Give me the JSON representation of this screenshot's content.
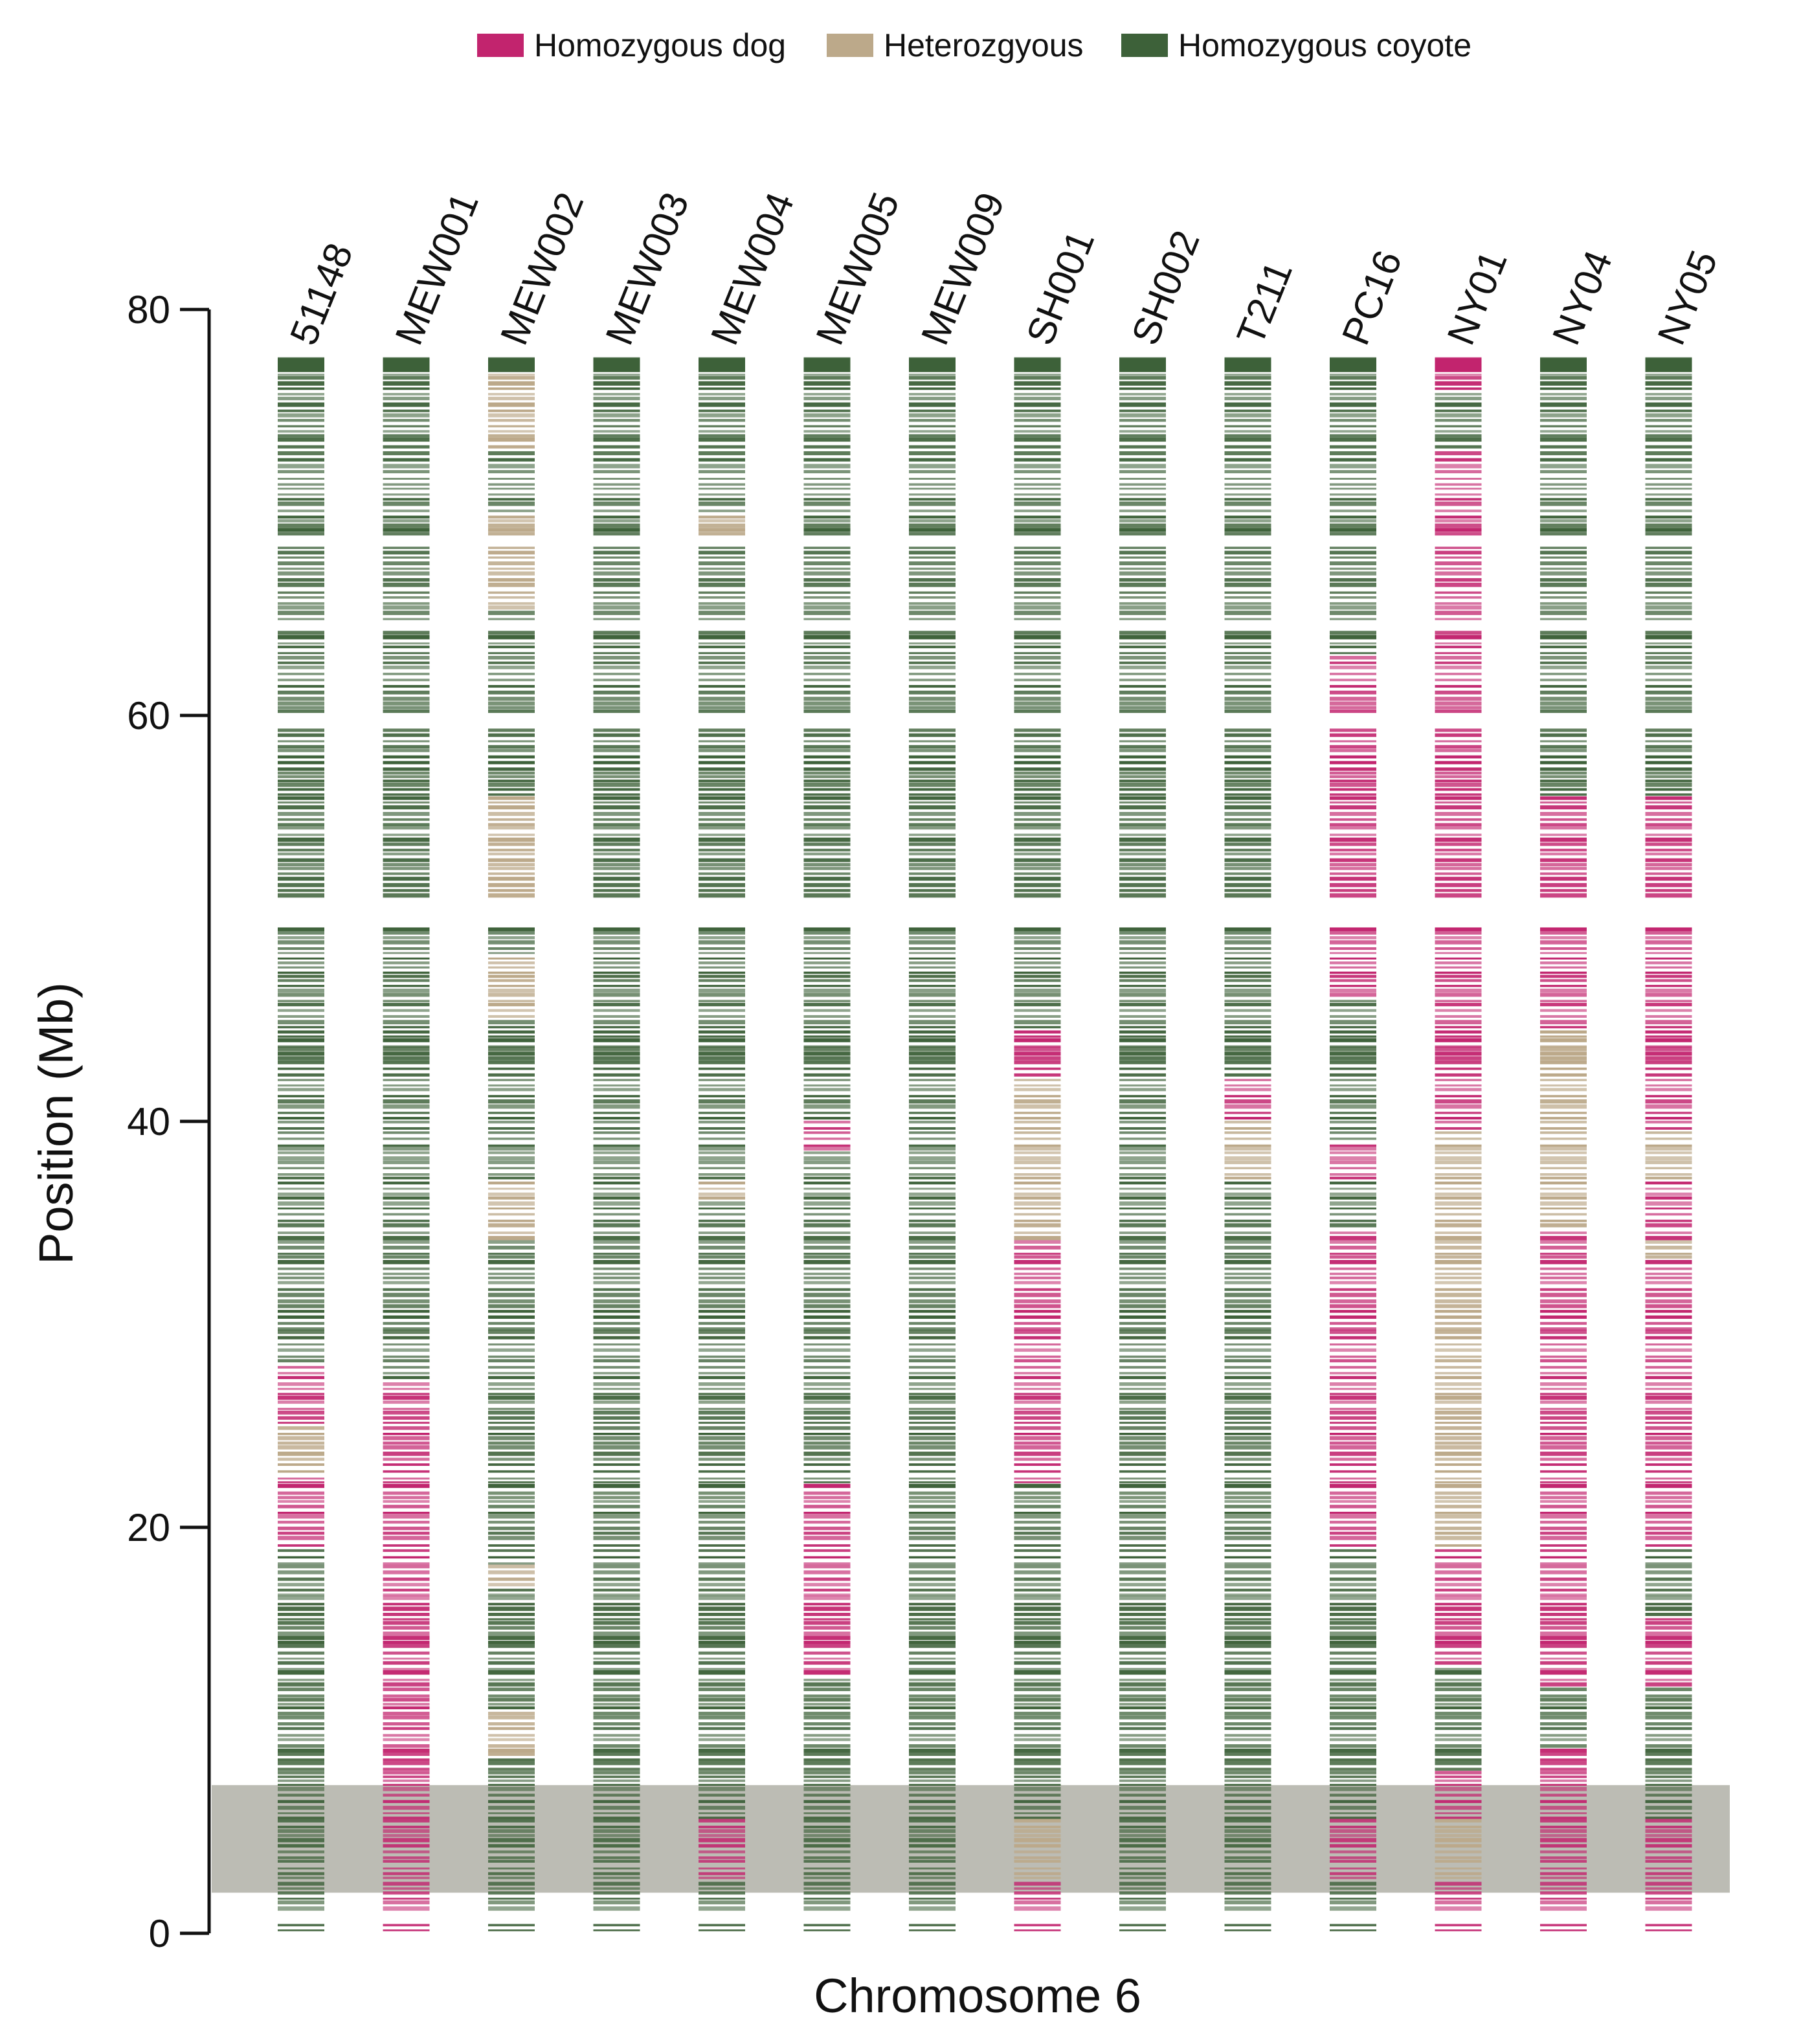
{
  "legend": {
    "items": [
      {
        "label": "Homozygous dog",
        "color": "#C2246E"
      },
      {
        "label": "Heterozgyous",
        "color": "#BCA98A"
      },
      {
        "label": "Homozygous coyote",
        "color": "#3D6139"
      }
    ]
  },
  "highlight": {
    "from": 2.0,
    "to": 7.3,
    "color": "#B8B8B0"
  },
  "chart_data": {
    "type": "heatmap",
    "title": "",
    "xlabel": "Chromosome 6",
    "ylabel": "Position (Mb)",
    "ylim": [
      0,
      80
    ],
    "yticks": [
      0,
      20,
      40,
      60,
      80
    ],
    "ytick_labels": [
      "0",
      "20",
      "40",
      "60",
      "80"
    ],
    "tracks": [
      {
        "sample": "51148",
        "segments": [
          [
            0,
            19,
            "coyote"
          ],
          [
            19,
            28,
            "dog"
          ],
          [
            28,
            80,
            "coyote"
          ]
        ],
        "het_spots": [
          [
            22.5,
            25
          ]
        ]
      },
      {
        "sample": "MEW001",
        "segments": [
          [
            0,
            27,
            "dog"
          ],
          [
            27,
            80,
            "coyote"
          ]
        ],
        "het_spots": []
      },
      {
        "sample": "MEW002",
        "segments": [
          [
            0,
            80,
            "coyote"
          ]
        ],
        "het_spots": [
          [
            8.5,
            11
          ],
          [
            17,
            18
          ],
          [
            34,
            37
          ],
          [
            45,
            48
          ],
          [
            51,
            56
          ],
          [
            65,
            70
          ],
          [
            73,
            77
          ]
        ]
      },
      {
        "sample": "MEW003",
        "segments": [
          [
            0,
            80,
            "coyote"
          ]
        ],
        "het_spots": []
      },
      {
        "sample": "MEW004",
        "segments": [
          [
            0,
            2.5,
            "coyote"
          ],
          [
            2.5,
            5.5,
            "dog"
          ],
          [
            5.5,
            80,
            "coyote"
          ]
        ],
        "het_spots": [
          [
            36,
            37
          ],
          [
            68.5,
            70
          ]
        ]
      },
      {
        "sample": "MEW005",
        "segments": [
          [
            0,
            12.5,
            "coyote"
          ],
          [
            12.5,
            22,
            "dog"
          ],
          [
            22,
            38.5,
            "coyote"
          ],
          [
            38.5,
            40,
            "dog"
          ],
          [
            40,
            80,
            "coyote"
          ]
        ],
        "het_spots": []
      },
      {
        "sample": "MEW009",
        "segments": [
          [
            0,
            80,
            "coyote"
          ]
        ],
        "het_spots": []
      },
      {
        "sample": "SH001",
        "segments": [
          [
            0,
            2.5,
            "dog"
          ],
          [
            2.5,
            5.5,
            "het"
          ],
          [
            5.5,
            22,
            "coyote"
          ],
          [
            22,
            34,
            "dog"
          ],
          [
            34,
            42,
            "het"
          ],
          [
            42,
            44.5,
            "dog"
          ],
          [
            44.5,
            80,
            "coyote"
          ]
        ],
        "het_spots": []
      },
      {
        "sample": "SH002",
        "segments": [
          [
            0,
            80,
            "coyote"
          ]
        ],
        "het_spots": []
      },
      {
        "sample": "T211",
        "segments": [
          [
            0,
            37,
            "coyote"
          ],
          [
            37,
            40,
            "het"
          ],
          [
            40,
            42,
            "dog"
          ],
          [
            42,
            80,
            "coyote"
          ]
        ],
        "het_spots": []
      },
      {
        "sample": "PC16",
        "segments": [
          [
            0,
            2.5,
            "coyote"
          ],
          [
            2.5,
            5.5,
            "dog"
          ],
          [
            5.5,
            19,
            "coyote"
          ],
          [
            19,
            34.5,
            "dog"
          ],
          [
            34.5,
            37,
            "coyote"
          ],
          [
            37,
            39,
            "dog"
          ],
          [
            39,
            46,
            "coyote"
          ],
          [
            46,
            63,
            "dog"
          ],
          [
            63,
            80,
            "coyote"
          ]
        ],
        "het_spots": []
      },
      {
        "sample": "NY01",
        "segments": [
          [
            0,
            2.5,
            "dog"
          ],
          [
            2.5,
            5.5,
            "het"
          ],
          [
            5.5,
            8,
            "dog"
          ],
          [
            8,
            13,
            "coyote"
          ],
          [
            13,
            19,
            "dog"
          ],
          [
            19,
            39.5,
            "het"
          ],
          [
            39.5,
            73,
            "dog"
          ],
          [
            73,
            76,
            "coyote"
          ],
          [
            76,
            80,
            "dog"
          ]
        ],
        "het_spots": []
      },
      {
        "sample": "NY04",
        "segments": [
          [
            0,
            9,
            "dog"
          ],
          [
            9,
            12,
            "coyote"
          ],
          [
            12,
            34.5,
            "dog"
          ],
          [
            34.5,
            44.5,
            "het"
          ],
          [
            44.5,
            56,
            "dog"
          ],
          [
            56,
            80,
            "coyote"
          ]
        ],
        "het_spots": []
      },
      {
        "sample": "NY05",
        "segments": [
          [
            0,
            5.5,
            "dog"
          ],
          [
            5.5,
            12,
            "coyote"
          ],
          [
            12,
            15.5,
            "dog"
          ],
          [
            15.5,
            19,
            "coyote"
          ],
          [
            19,
            33,
            "dog"
          ],
          [
            33,
            34,
            "het"
          ],
          [
            34,
            37,
            "dog"
          ],
          [
            37,
            39.5,
            "het"
          ],
          [
            39.5,
            56,
            "dog"
          ],
          [
            56,
            80,
            "coyote"
          ]
        ],
        "het_spots": []
      }
    ]
  }
}
